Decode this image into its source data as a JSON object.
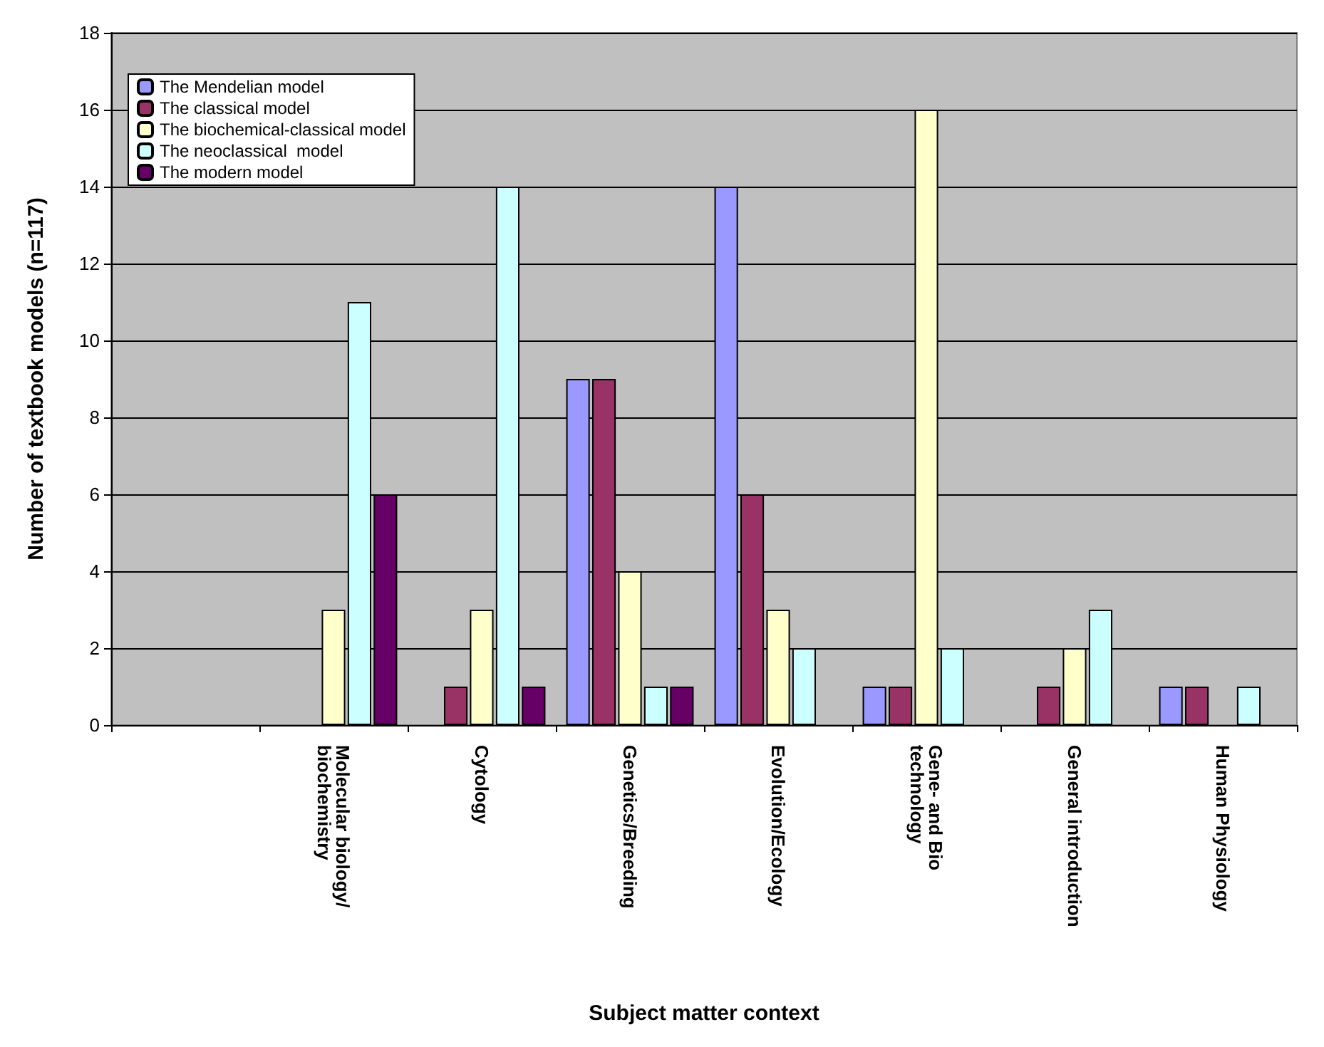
{
  "chart_data": {
    "type": "bar",
    "xlabel": "Subject matter context",
    "ylabel": "Number of textbook models (n=117)",
    "categories": [
      null,
      "Molecular biology/biochemistry",
      "Cytology",
      "Genetics/Breeding",
      "Evolution/Ecology",
      "Gene- and Bio technology",
      "General introduction",
      "Human Physiology"
    ],
    "series": [
      {
        "name": "The Mendelian model",
        "color": "#9999ff",
        "values": [
          null,
          0,
          0,
          9,
          14,
          1,
          0,
          1
        ]
      },
      {
        "name": "The classical model",
        "color": "#993366",
        "values": [
          null,
          0,
          1,
          9,
          6,
          1,
          1,
          1
        ]
      },
      {
        "name": "The biochemical-classical model",
        "color": "#ffffcc",
        "values": [
          null,
          3,
          3,
          4,
          3,
          16,
          2,
          0
        ]
      },
      {
        "name": "The neoclassical  model",
        "color": "#ccffff",
        "values": [
          null,
          11,
          14,
          1,
          2,
          2,
          3,
          1
        ]
      },
      {
        "name": "The modern model",
        "color": "#660066",
        "values": [
          null,
          6,
          1,
          1,
          0,
          0,
          0,
          0
        ]
      }
    ],
    "ylim": [
      0,
      18
    ],
    "yticks": [
      0,
      2,
      4,
      6,
      8,
      10,
      12,
      14,
      16,
      18
    ],
    "grid": "y",
    "legend": "top left"
  }
}
